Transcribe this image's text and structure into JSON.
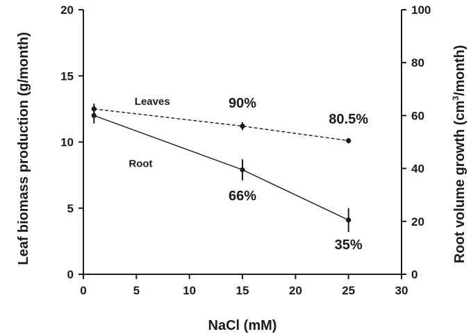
{
  "chart_data": {
    "type": "line",
    "xlabel": "NaCl (mM)",
    "ylabel_left": "Leaf biomass production (g/month)",
    "ylabel_right_main": "Root volume growth (cm",
    "ylabel_right_sup": "3",
    "ylabel_right_tail": "/month)",
    "xlim": [
      0,
      30
    ],
    "ylim_left": [
      0,
      20
    ],
    "ylim_right": [
      0,
      100
    ],
    "x_ticks": [
      "0",
      "5",
      "10",
      "15",
      "20",
      "25",
      "30"
    ],
    "y_left_ticks": [
      "0",
      "5",
      "10",
      "15",
      "20"
    ],
    "y_right_ticks": [
      "0",
      "20",
      "40",
      "60",
      "80",
      "100"
    ],
    "series": [
      {
        "name": "Leaves",
        "axis": "left",
        "style": "dashed",
        "x": [
          1,
          15,
          25
        ],
        "y": [
          12.5,
          11.2,
          10.1
        ],
        "err": [
          0.4,
          0.3,
          0.2
        ]
      },
      {
        "name": "Root",
        "axis": "left",
        "style": "solid",
        "x": [
          1,
          15,
          25
        ],
        "y": [
          12.0,
          7.9,
          4.1
        ],
        "err": [
          0.6,
          0.8,
          0.9
        ]
      }
    ],
    "annotations": [
      {
        "text": "90%",
        "x": 15,
        "y": 12.6
      },
      {
        "text": "80.5%",
        "x": 25,
        "y": 11.4
      },
      {
        "text": "66%",
        "x": 15,
        "y": 5.6
      },
      {
        "text": "35%",
        "x": 25,
        "y": 1.9
      }
    ],
    "colors": {
      "line": "#1a1a1a",
      "background": "#ffffff"
    }
  }
}
